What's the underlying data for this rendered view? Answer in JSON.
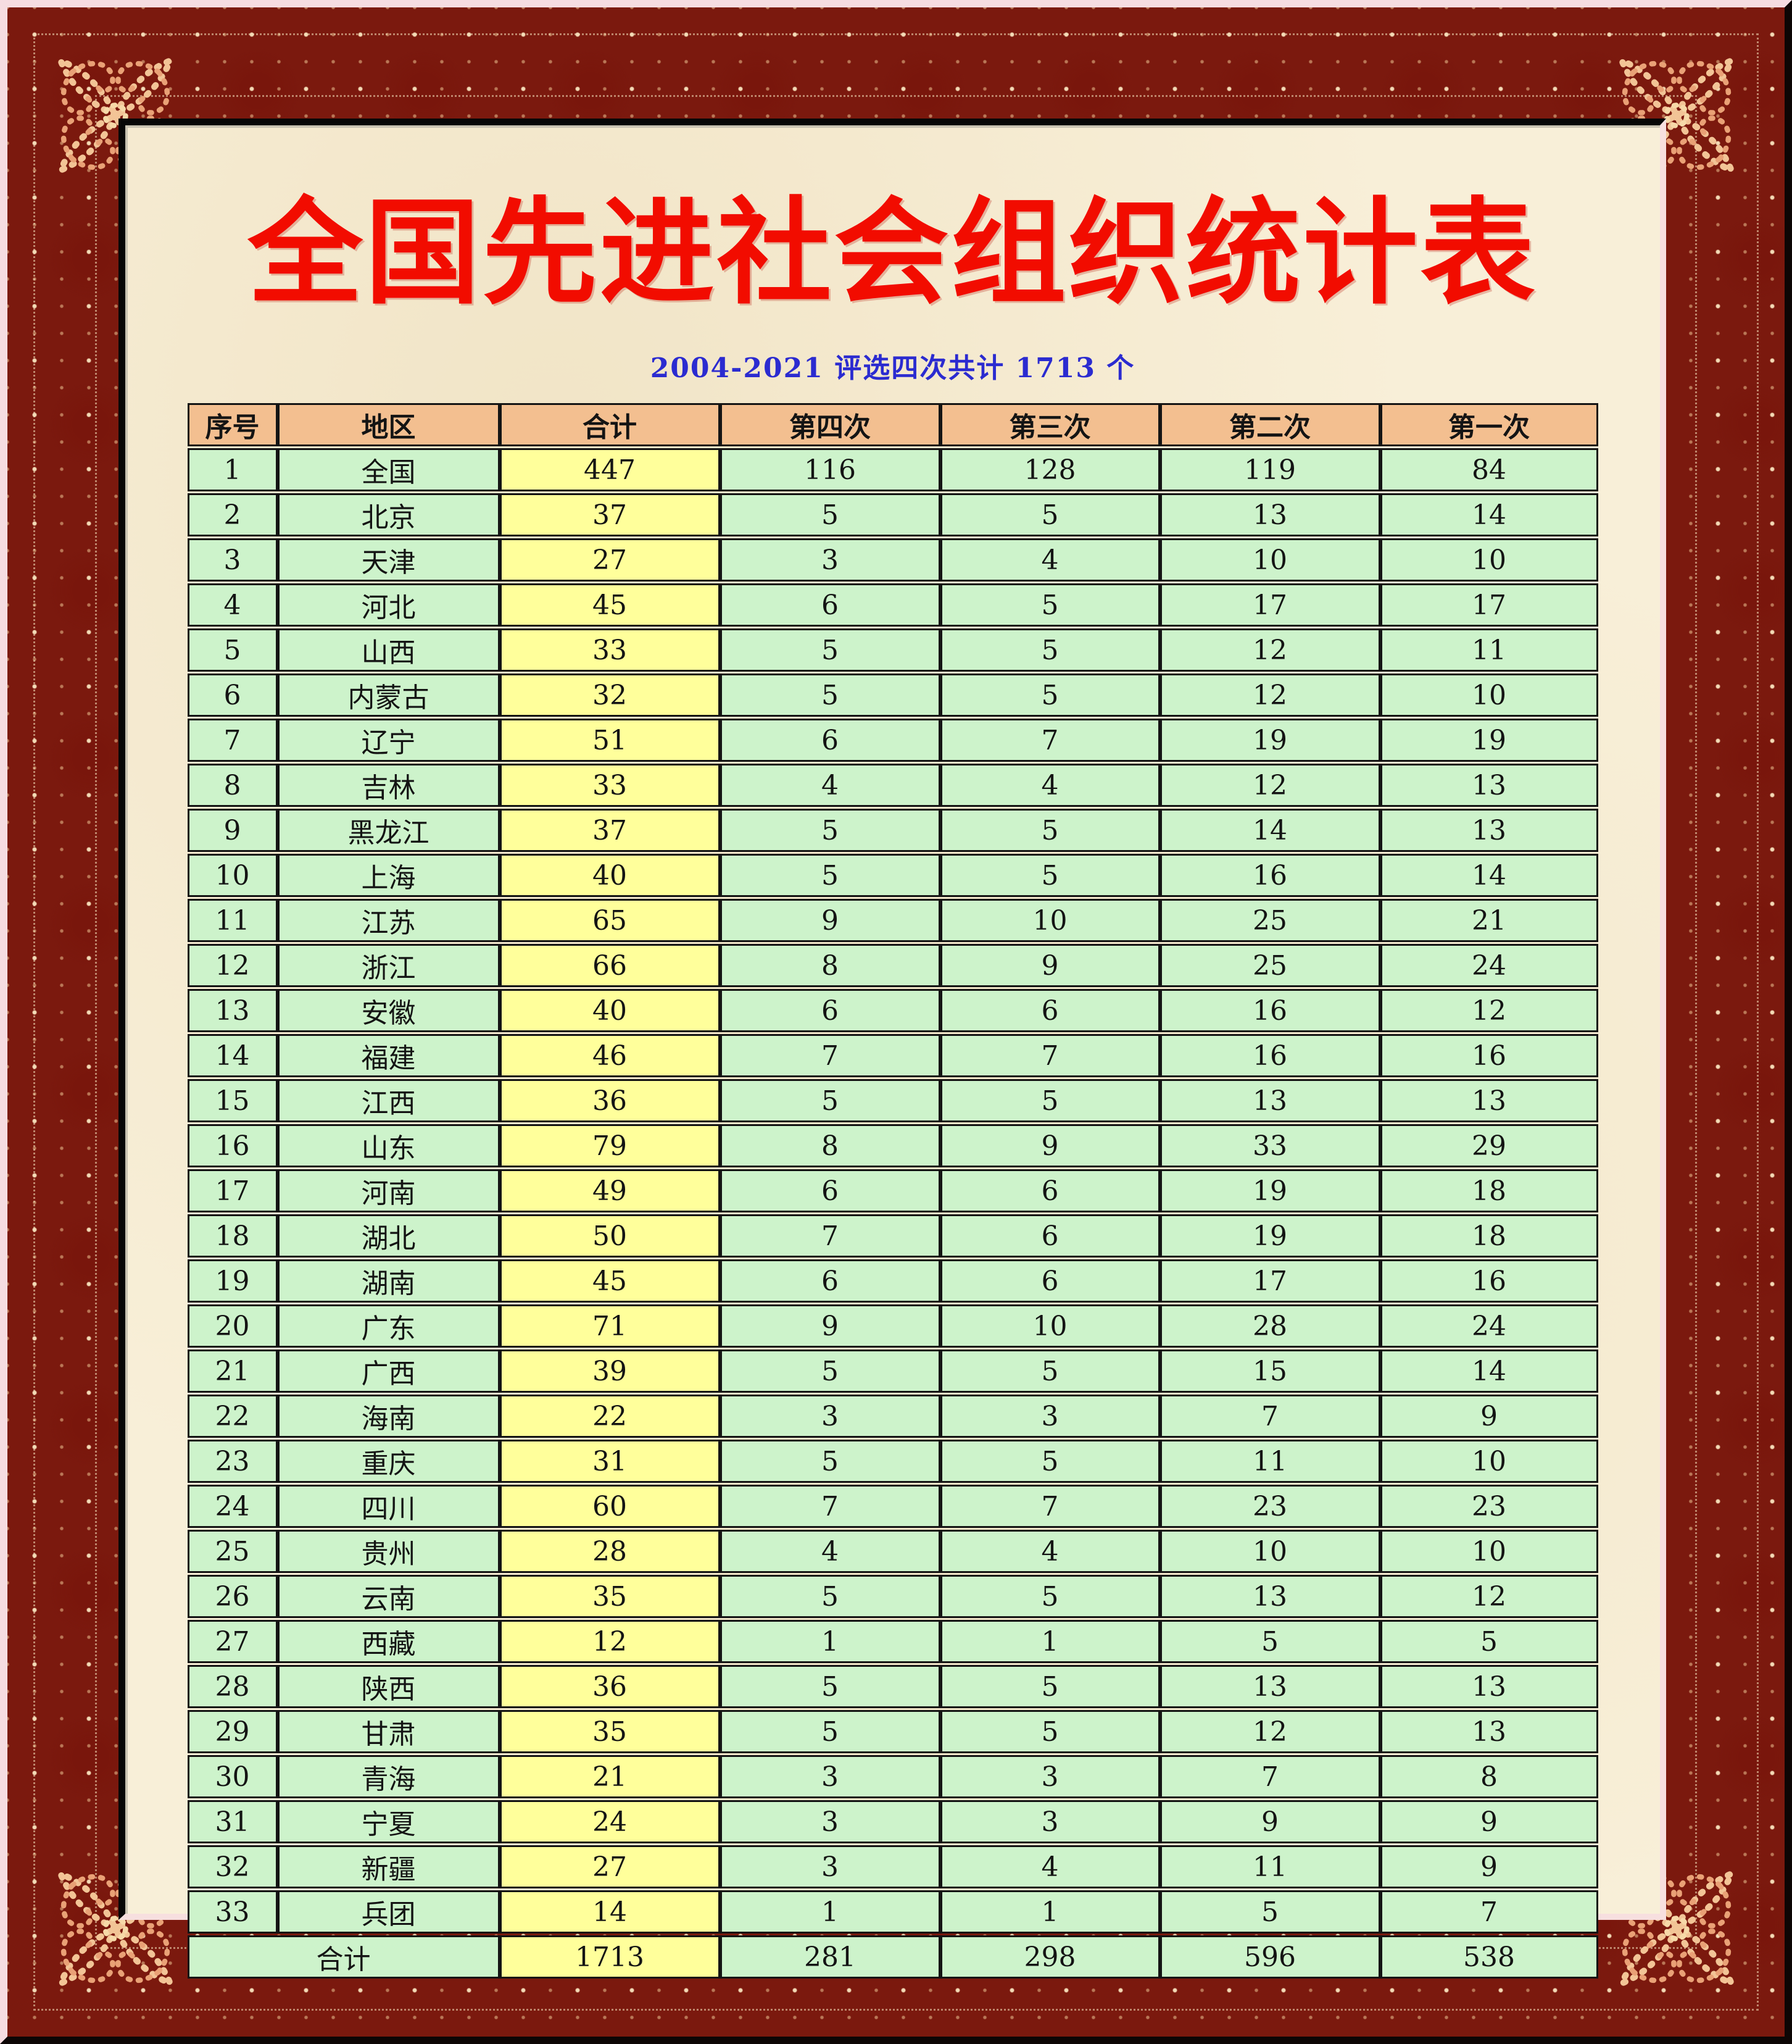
{
  "title": "全国先进社会组织统计表",
  "subtitle": "2004-2021 评选四次共计 1713 个",
  "table": {
    "headers": [
      "序号",
      "地区",
      "合计",
      "第四次",
      "第三次",
      "第二次",
      "第一次"
    ],
    "rows": [
      [
        "1",
        "全国",
        "447",
        "116",
        "128",
        "119",
        "84"
      ],
      [
        "2",
        "北京",
        "37",
        "5",
        "5",
        "13",
        "14"
      ],
      [
        "3",
        "天津",
        "27",
        "3",
        "4",
        "10",
        "10"
      ],
      [
        "4",
        "河北",
        "45",
        "6",
        "5",
        "17",
        "17"
      ],
      [
        "5",
        "山西",
        "33",
        "5",
        "5",
        "12",
        "11"
      ],
      [
        "6",
        "内蒙古",
        "32",
        "5",
        "5",
        "12",
        "10"
      ],
      [
        "7",
        "辽宁",
        "51",
        "6",
        "7",
        "19",
        "19"
      ],
      [
        "8",
        "吉林",
        "33",
        "4",
        "4",
        "12",
        "13"
      ],
      [
        "9",
        "黑龙江",
        "37",
        "5",
        "5",
        "14",
        "13"
      ],
      [
        "10",
        "上海",
        "40",
        "5",
        "5",
        "16",
        "14"
      ],
      [
        "11",
        "江苏",
        "65",
        "9",
        "10",
        "25",
        "21"
      ],
      [
        "12",
        "浙江",
        "66",
        "8",
        "9",
        "25",
        "24"
      ],
      [
        "13",
        "安徽",
        "40",
        "6",
        "6",
        "16",
        "12"
      ],
      [
        "14",
        "福建",
        "46",
        "7",
        "7",
        "16",
        "16"
      ],
      [
        "15",
        "江西",
        "36",
        "5",
        "5",
        "13",
        "13"
      ],
      [
        "16",
        "山东",
        "79",
        "8",
        "9",
        "33",
        "29"
      ],
      [
        "17",
        "河南",
        "49",
        "6",
        "6",
        "19",
        "18"
      ],
      [
        "18",
        "湖北",
        "50",
        "7",
        "6",
        "19",
        "18"
      ],
      [
        "19",
        "湖南",
        "45",
        "6",
        "6",
        "17",
        "16"
      ],
      [
        "20",
        "广东",
        "71",
        "9",
        "10",
        "28",
        "24"
      ],
      [
        "21",
        "广西",
        "39",
        "5",
        "5",
        "15",
        "14"
      ],
      [
        "22",
        "海南",
        "22",
        "3",
        "3",
        "7",
        "9"
      ],
      [
        "23",
        "重庆",
        "31",
        "5",
        "5",
        "11",
        "10"
      ],
      [
        "24",
        "四川",
        "60",
        "7",
        "7",
        "23",
        "23"
      ],
      [
        "25",
        "贵州",
        "28",
        "4",
        "4",
        "10",
        "10"
      ],
      [
        "26",
        "云南",
        "35",
        "5",
        "5",
        "13",
        "12"
      ],
      [
        "27",
        "西藏",
        "12",
        "1",
        "1",
        "5",
        "5"
      ],
      [
        "28",
        "陕西",
        "36",
        "5",
        "5",
        "13",
        "13"
      ],
      [
        "29",
        "甘肃",
        "35",
        "5",
        "5",
        "12",
        "13"
      ],
      [
        "30",
        "青海",
        "21",
        "3",
        "3",
        "7",
        "8"
      ],
      [
        "31",
        "宁夏",
        "24",
        "3",
        "3",
        "9",
        "9"
      ],
      [
        "32",
        "新疆",
        "27",
        "3",
        "4",
        "11",
        "9"
      ],
      [
        "33",
        "兵团",
        "14",
        "1",
        "1",
        "5",
        "7"
      ]
    ],
    "total_row": {
      "label": "合计",
      "values": [
        "1713",
        "281",
        "298",
        "596",
        "538"
      ]
    }
  },
  "colors": {
    "frame_maroon": "#7b190e",
    "frame_dot_gold": "#f0d2a0",
    "outer_border_pink": "#f6dce1",
    "panel_cream": "#f8efd8",
    "title_red": "#f20c00",
    "subtitle_blue": "#2b2bd0",
    "header_bg": "#f3bf90",
    "total_column_bg": "#ffff9b",
    "cell_green_bg": "#cdf3cb",
    "grid_black": "#141414"
  }
}
